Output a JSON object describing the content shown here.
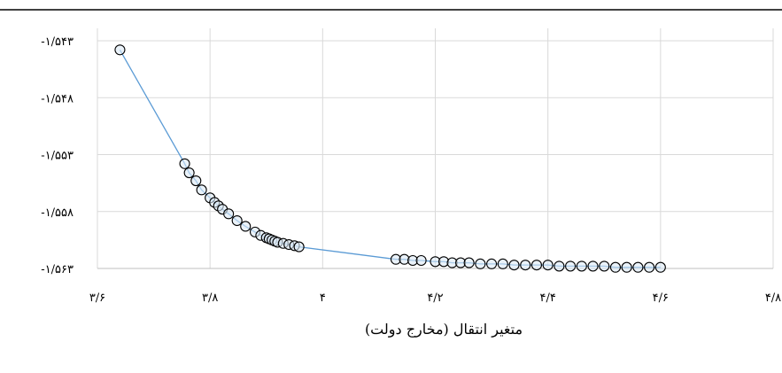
{
  "chart_data": {
    "type": "scatter",
    "title": "",
    "xlabel": "متغیر انتقال (مخارج دولت)",
    "ylabel": "",
    "xlim": [
      3.6,
      4.8
    ],
    "ylim": [
      -1.563,
      -1.543
    ],
    "x_ticks": [
      {
        "value": 3.6,
        "label": "۳/۶"
      },
      {
        "value": 3.8,
        "label": "۳/۸"
      },
      {
        "value": 4.0,
        "label": "۴"
      },
      {
        "value": 4.2,
        "label": "۴/۲"
      },
      {
        "value": 4.4,
        "label": "۴/۴"
      },
      {
        "value": 4.6,
        "label": "۴/۶"
      },
      {
        "value": 4.8,
        "label": "۴/۸"
      }
    ],
    "y_ticks": [
      {
        "value": -1.543,
        "label": "-۱/۵۴۳"
      },
      {
        "value": -1.548,
        "label": "-۱/۵۴۸"
      },
      {
        "value": -1.553,
        "label": "-۱/۵۵۳"
      },
      {
        "value": -1.558,
        "label": "-۱/۵۵۸"
      },
      {
        "value": -1.563,
        "label": "-۱/۵۶۳"
      }
    ],
    "grid": true,
    "series": [
      {
        "line_color": "#5b9bd5",
        "marker_edge": "#000000",
        "marker_fill": "#dce9f5",
        "x": [
          3.64,
          3.755,
          3.763,
          3.775,
          3.785,
          3.8,
          3.808,
          3.815,
          3.822,
          3.833,
          3.848,
          3.863,
          3.88,
          3.89,
          3.9,
          3.905,
          3.91,
          3.915,
          3.92,
          3.93,
          3.94,
          3.95,
          3.958,
          4.13,
          4.145,
          4.16,
          4.175,
          4.2,
          4.215,
          4.23,
          4.245,
          4.26,
          4.28,
          4.3,
          4.32,
          4.34,
          4.36,
          4.38,
          4.4,
          4.42,
          4.44,
          4.46,
          4.48,
          4.5,
          4.52,
          4.54,
          4.56,
          4.58,
          4.6
        ],
        "y": [
          -1.5438,
          -1.5538,
          -1.5546,
          -1.5553,
          -1.5561,
          -1.5568,
          -1.5572,
          -1.5575,
          -1.5578,
          -1.5582,
          -1.5588,
          -1.5593,
          -1.5598,
          -1.5601,
          -1.5603,
          -1.5604,
          -1.5605,
          -1.5606,
          -1.5607,
          -1.5608,
          -1.5609,
          -1.561,
          -1.5611,
          -1.5622,
          -1.5622,
          -1.5623,
          -1.5623,
          -1.5624,
          -1.5624,
          -1.5625,
          -1.5625,
          -1.5625,
          -1.5626,
          -1.5626,
          -1.5626,
          -1.5627,
          -1.5627,
          -1.5627,
          -1.5627,
          -1.5628,
          -1.5628,
          -1.5628,
          -1.5628,
          -1.5628,
          -1.5629,
          -1.5629,
          -1.5629,
          -1.5629,
          -1.5629
        ]
      }
    ]
  }
}
